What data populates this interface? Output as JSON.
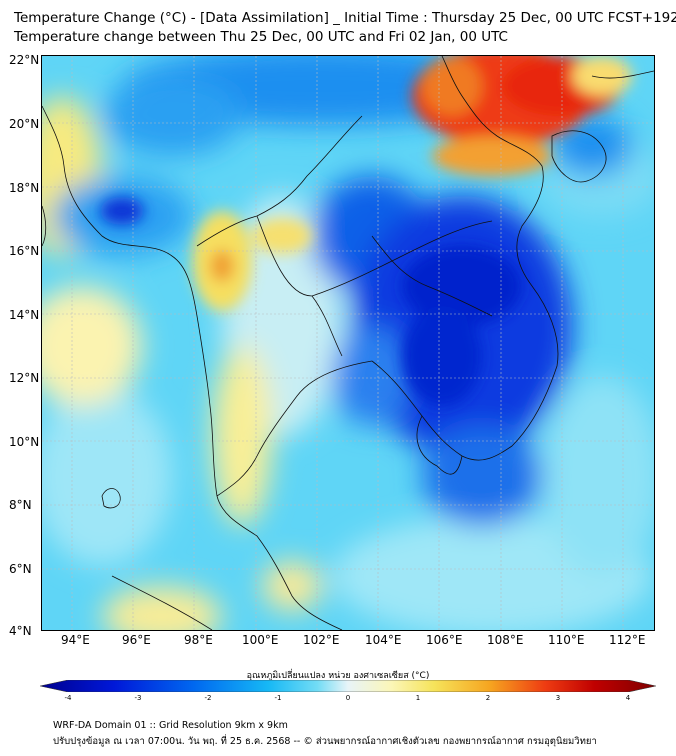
{
  "title": {
    "line1": "Temperature Change (°C) - [Data Assimilation] _ Initial Time : Thursday 25 Dec, 00 UTC FCST+192",
    "line2": "Temperature change between Thu 25 Dec, 00 UTC and Fri 02 Jan, 00 UTC"
  },
  "map": {
    "lon_range": [
      93,
      113
    ],
    "lat_range": [
      4,
      22
    ],
    "lat_labels": [
      "22°N",
      "20°N",
      "18°N",
      "16°N",
      "14°N",
      "12°N",
      "10°N",
      "8°N",
      "6°N",
      "4°N"
    ],
    "lon_labels": [
      "94°E",
      "96°E",
      "98°E",
      "100°E",
      "102°E",
      "104°E",
      "106°E",
      "108°E",
      "110°E",
      "112°E"
    ],
    "background_color": "#5fd5f6"
  },
  "colorbar": {
    "label": "อุณหภูมิเปลี่ยนแปลง หน่วย องศาเซลเซียส (°C)",
    "ticks": [
      "-4",
      "-3",
      "-2",
      "-1",
      "0",
      "1",
      "2",
      "3",
      "4"
    ],
    "range": [
      -4,
      4
    ],
    "colors": [
      "#00008f",
      "#0018d8",
      "#0068f0",
      "#16b8f5",
      "#72dcf5",
      "#e8f4f8",
      "#fbf6b8",
      "#f6e35a",
      "#f6a520",
      "#ee3c12",
      "#c00000",
      "#7e0000"
    ]
  },
  "footer": {
    "line1": "WRF-DA Domain 01 :: Grid Resolution 9km x 9km",
    "line2": "ปรับปรุงข้อมูล ณ เวลา 07:00น. วัน พฤ. ที่ 25 ธ.ค. 2568 -- © ส่วนพยากรณ์อากาศเชิงตัวเลข กองพยากรณ์อากาศ กรมอุตุนิยมวิทยา"
  }
}
